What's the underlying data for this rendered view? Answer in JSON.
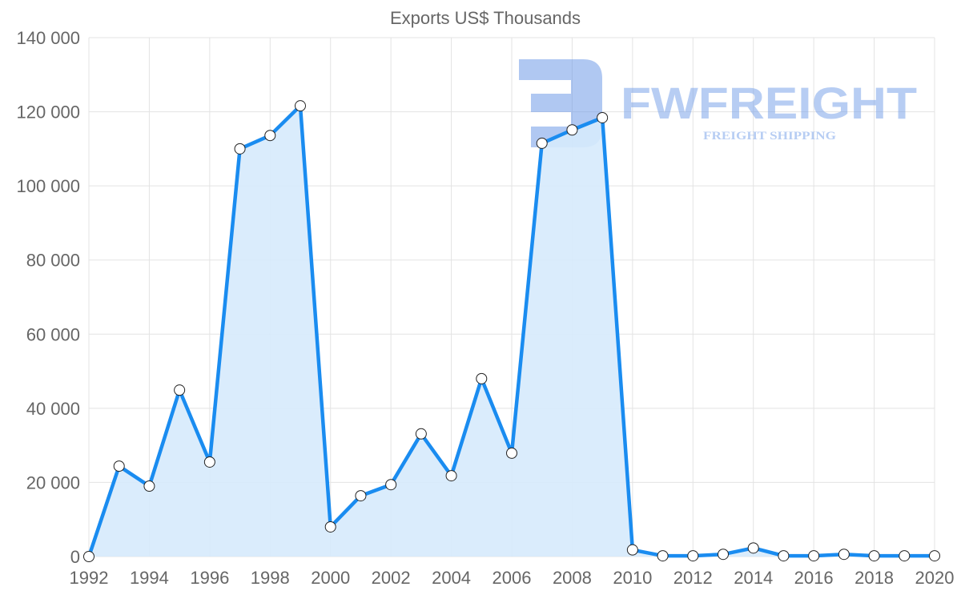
{
  "chart_data": {
    "type": "area",
    "title": "Exports US$ Thousands",
    "xlabel": "",
    "ylabel": "",
    "x": [
      1992,
      1993,
      1994,
      1995,
      1996,
      1997,
      1998,
      1999,
      2000,
      2001,
      2002,
      2003,
      2004,
      2005,
      2006,
      2007,
      2008,
      2009,
      2010,
      2011,
      2012,
      2013,
      2014,
      2015,
      2016,
      2017,
      2018,
      2019,
      2020
    ],
    "series": [
      {
        "name": "Exports US$ Thousands",
        "values": [
          0,
          24400,
          19000,
          44900,
          25500,
          110000,
          113600,
          121600,
          8000,
          16400,
          19400,
          33100,
          21800,
          48000,
          27900,
          111500,
          115100,
          118400,
          1800,
          200,
          200,
          600,
          2300,
          200,
          200,
          600,
          200,
          200,
          200
        ]
      }
    ],
    "ylim": [
      0,
      140000
    ],
    "xlim": [
      1992,
      2020
    ],
    "yticks": [
      0,
      20000,
      40000,
      60000,
      80000,
      100000,
      120000,
      140000
    ],
    "ytick_labels": [
      "0",
      "20 000",
      "40 000",
      "60 000",
      "80 000",
      "100 000",
      "120 000",
      "140 000"
    ],
    "xticks": [
      1992,
      1994,
      1996,
      1998,
      2000,
      2002,
      2004,
      2006,
      2008,
      2010,
      2012,
      2014,
      2016,
      2018,
      2020
    ],
    "grid": true,
    "legend": "none",
    "colors": {
      "line": "#1a8cf0",
      "fill": "#d6eafc",
      "grid": "#e3e3e3",
      "text": "#666666"
    }
  },
  "watermark": {
    "brand": "FWFREIGHT",
    "tagline": "FREIGHT SHIPPING"
  }
}
